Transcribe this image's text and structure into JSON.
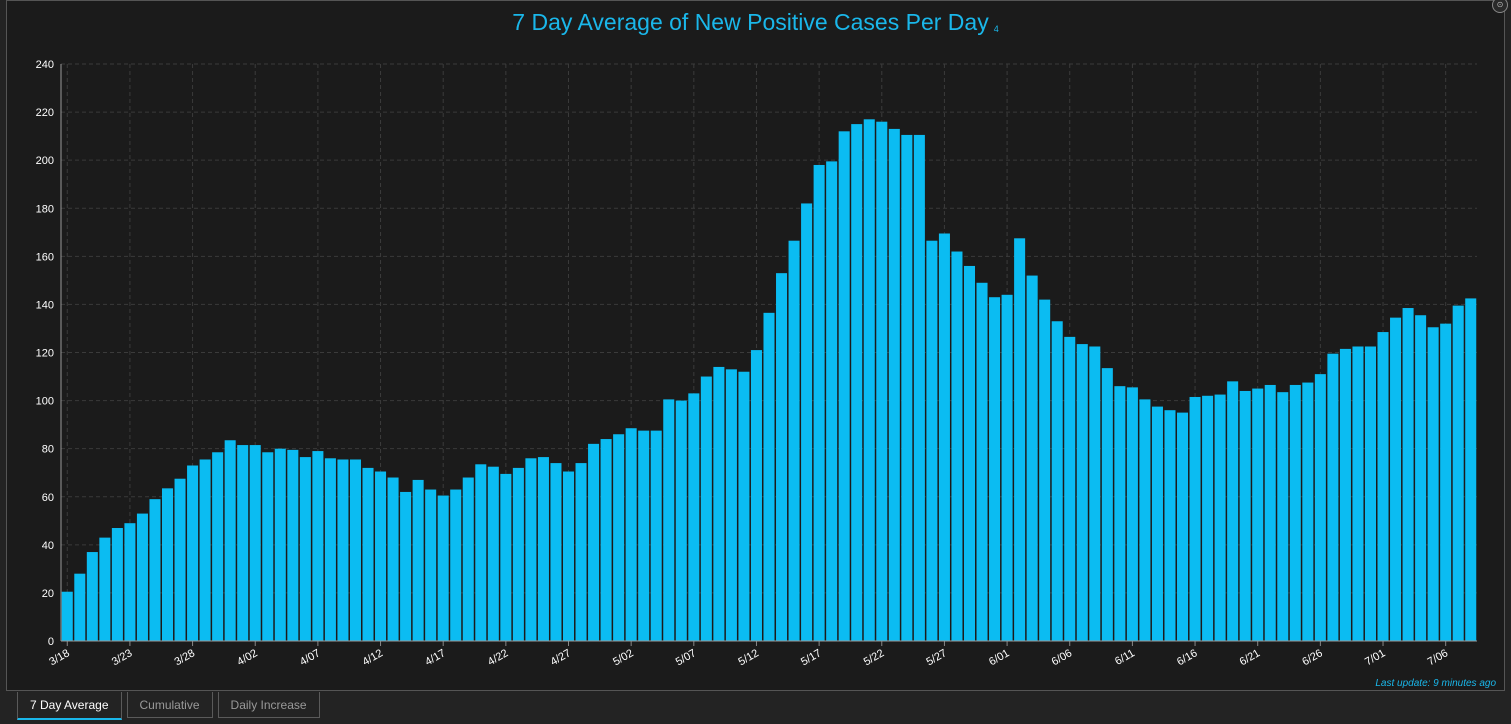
{
  "title": "7 Day Average of New Positive Cases Per Day",
  "title_note": "4",
  "last_update": "Last update: 9 minutes ago",
  "tabs": [
    {
      "label": "7 Day Average",
      "active": true
    },
    {
      "label": "Cumulative",
      "active": false
    },
    {
      "label": "Daily Increase",
      "active": false
    }
  ],
  "colors": {
    "bar": "#0bbcf2",
    "accent": "#1ab7ea",
    "grid": "#3b3b3b",
    "axis_text": "#ffffff"
  },
  "chart_data": {
    "type": "bar",
    "title": "7 Day Average of New Positive Cases Per Day",
    "xlabel": "",
    "ylabel": "",
    "ylim": [
      0,
      240
    ],
    "yticks": [
      0,
      20,
      40,
      60,
      80,
      100,
      120,
      140,
      160,
      180,
      200,
      220,
      240
    ],
    "grid": true,
    "tick_labels": [
      "3/18",
      "3/23",
      "3/28",
      "4/02",
      "4/07",
      "4/12",
      "4/17",
      "4/22",
      "4/27",
      "5/02",
      "5/07",
      "5/12",
      "5/17",
      "5/22",
      "5/27",
      "6/01",
      "6/06",
      "6/11",
      "6/16",
      "6/21",
      "6/26",
      "7/01",
      "7/06"
    ],
    "categories": [
      "3/18",
      "3/19",
      "3/20",
      "3/21",
      "3/22",
      "3/23",
      "3/24",
      "3/25",
      "3/26",
      "3/27",
      "3/28",
      "3/29",
      "3/30",
      "3/31",
      "4/01",
      "4/02",
      "4/03",
      "4/04",
      "4/05",
      "4/06",
      "4/07",
      "4/08",
      "4/09",
      "4/10",
      "4/11",
      "4/12",
      "4/13",
      "4/14",
      "4/15",
      "4/16",
      "4/17",
      "4/18",
      "4/19",
      "4/20",
      "4/21",
      "4/22",
      "4/23",
      "4/24",
      "4/25",
      "4/26",
      "4/27",
      "4/28",
      "4/29",
      "4/30",
      "5/01",
      "5/02",
      "5/03",
      "5/04",
      "5/05",
      "5/06",
      "5/07",
      "5/08",
      "5/09",
      "5/10",
      "5/11",
      "5/12",
      "5/13",
      "5/14",
      "5/15",
      "5/16",
      "5/17",
      "5/18",
      "5/19",
      "5/20",
      "5/21",
      "5/22",
      "5/23",
      "5/24",
      "5/25",
      "5/26",
      "5/27",
      "5/28",
      "5/29",
      "5/30",
      "5/31",
      "6/01",
      "6/02",
      "6/03",
      "6/04",
      "6/05",
      "6/06",
      "6/07",
      "6/08",
      "6/09",
      "6/10",
      "6/11",
      "6/12",
      "6/13",
      "6/14",
      "6/15",
      "6/16",
      "6/17",
      "6/18",
      "6/19",
      "6/20",
      "6/21",
      "6/22",
      "6/23",
      "6/24",
      "6/25",
      "6/26",
      "6/27",
      "6/28",
      "6/29",
      "6/30",
      "7/01",
      "7/02",
      "7/03",
      "7/04",
      "7/05",
      "7/06",
      "7/07",
      "7/08"
    ],
    "values": [
      20.5,
      28,
      37,
      43,
      47,
      49,
      53,
      59,
      63.5,
      67.5,
      73,
      75.5,
      78.5,
      83.5,
      81.5,
      81.5,
      78.5,
      80,
      79.5,
      76.5,
      79,
      76,
      75.5,
      75.5,
      72,
      70.5,
      68,
      62,
      67,
      63,
      60.5,
      63,
      68,
      73.5,
      72.5,
      69.5,
      72,
      76,
      76.5,
      74,
      70.5,
      74,
      82,
      84,
      86,
      88.5,
      87.5,
      87.5,
      100.5,
      100,
      103,
      110,
      114,
      113,
      112,
      121,
      136.5,
      153,
      166.5,
      182,
      198,
      199.5,
      212,
      215,
      217,
      216,
      213,
      210.5,
      210.5,
      166.5,
      169.5,
      162,
      156,
      149,
      143,
      144,
      167.5,
      152,
      142,
      133,
      126.5,
      123.5,
      122.5,
      113.5,
      106,
      105.5,
      100.5,
      97.5,
      96,
      95,
      101.5,
      102,
      102.5,
      108,
      104,
      105,
      106.5,
      103.5,
      106.5,
      107.5,
      111,
      119.5,
      121.5,
      122.5,
      122.5,
      128.5,
      134.5,
      138.5,
      135.5,
      130.5,
      132,
      139.5,
      142.5
    ]
  }
}
